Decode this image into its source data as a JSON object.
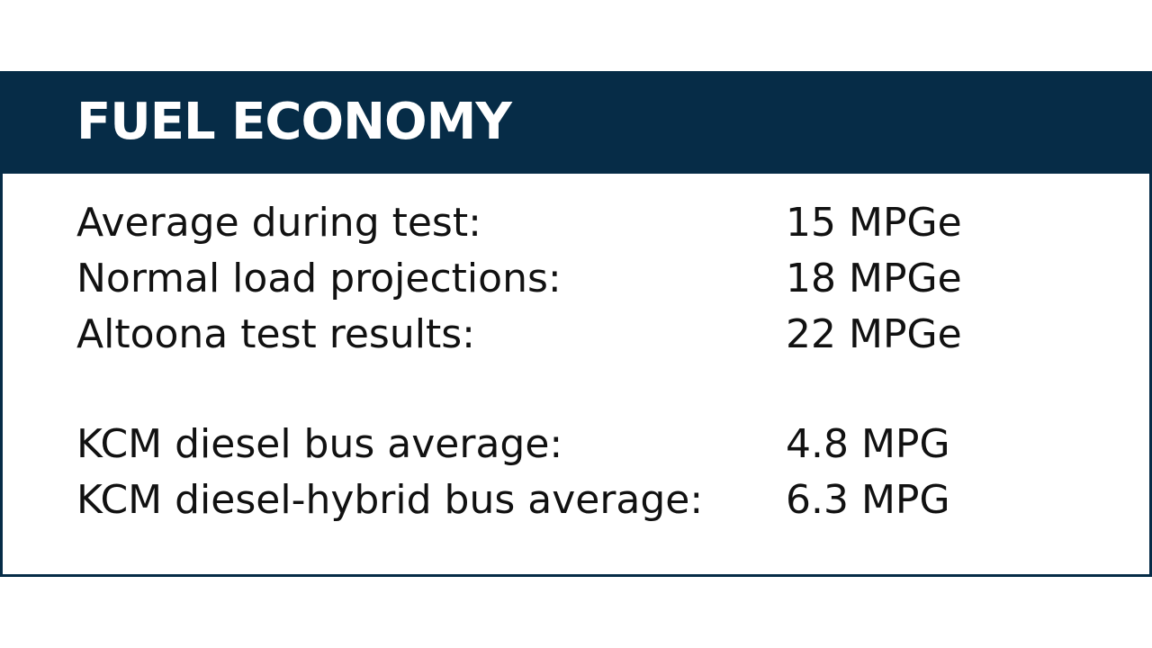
{
  "panel": {
    "title": "FUEL ECONOMY",
    "groups": [
      {
        "rows": [
          {
            "label": "Average during test:",
            "value": "15 MPGe"
          },
          {
            "label": "Normal load projections:",
            "value": "18 MPGe"
          },
          {
            "label": "Altoona test results:",
            "value": "22 MPGe"
          }
        ]
      },
      {
        "rows": [
          {
            "label": "KCM diesel bus average:",
            "value": "4.8 MPG"
          },
          {
            "label": "KCM diesel-hybrid bus average:",
            "value": "6.3 MPG"
          }
        ]
      }
    ]
  },
  "colors": {
    "header_background": "#062c47",
    "header_text": "#ffffff",
    "body_text": "#111111",
    "background": "#ffffff"
  }
}
